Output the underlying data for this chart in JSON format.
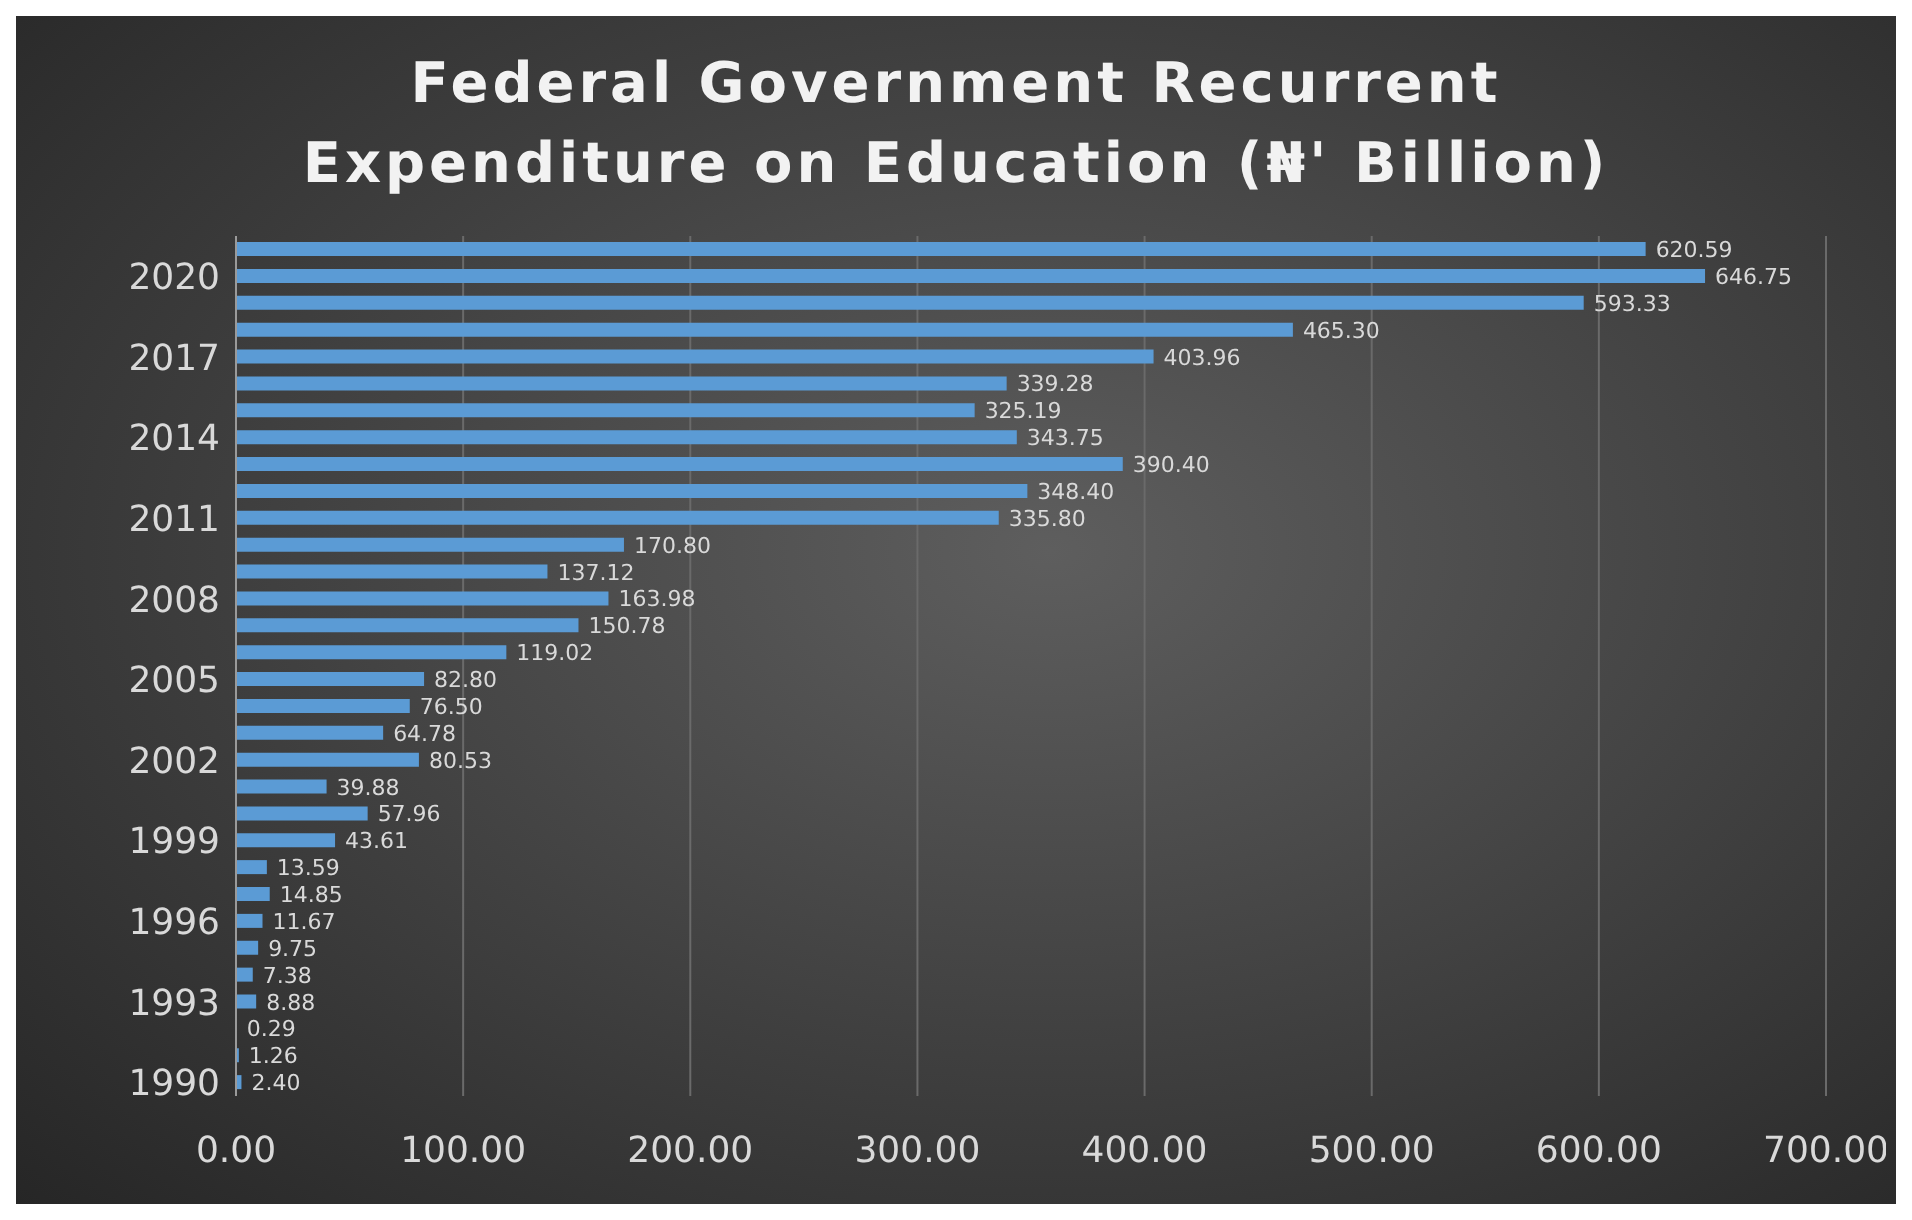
{
  "chart_data": {
    "type": "bar",
    "orientation": "horizontal",
    "title": "Federal Government Recurrent Expenditure on Education (₦' Billion)",
    "categories": [
      null,
      "2020",
      null,
      null,
      "2017",
      null,
      null,
      "2014",
      null,
      null,
      "2011",
      null,
      null,
      "2008",
      null,
      null,
      "2005",
      null,
      null,
      "2002",
      null,
      null,
      "1999",
      null,
      null,
      "1996",
      null,
      null,
      "1993",
      null,
      null,
      "1990"
    ],
    "series": [
      {
        "color": "#5b9bd5",
        "values": [
          620.59,
          646.75,
          593.33,
          465.3,
          403.96,
          339.28,
          325.19,
          343.75,
          390.4,
          348.4,
          335.8,
          170.8,
          137.12,
          163.98,
          150.78,
          119.02,
          82.8,
          76.5,
          64.78,
          80.53,
          39.88,
          57.96,
          43.61,
          13.59,
          14.85,
          11.67,
          9.75,
          7.38,
          8.88,
          0.29,
          1.26,
          2.4
        ],
        "value_labels": [
          "620.59",
          "646.75",
          "593.33",
          "465.30",
          "403.96",
          "339.28",
          "325.19",
          "343.75",
          "390.40",
          "348.40",
          "335.80",
          "170.80",
          "137.12",
          "163.98",
          "150.78",
          "119.02",
          "82.80",
          "76.50",
          "64.78",
          "80.53",
          "39.88",
          "57.96",
          "43.61",
          "13.59",
          "14.85",
          "11.67",
          "9.75",
          "7.38",
          "8.88",
          "0.29",
          "1.26",
          "2.40"
        ]
      }
    ],
    "xlim": [
      0,
      700
    ],
    "xticks": [
      {
        "value": 0,
        "label": "0.00"
      },
      {
        "value": 100,
        "label": "100.00"
      },
      {
        "value": 200,
        "label": "200.00"
      },
      {
        "value": 300,
        "label": "300.00"
      },
      {
        "value": 400,
        "label": "400.00"
      },
      {
        "value": 500,
        "label": "500.00"
      },
      {
        "value": 600,
        "label": "600.00"
      },
      {
        "value": 700,
        "label": "700.00"
      }
    ],
    "grid": "x",
    "legend": false
  }
}
